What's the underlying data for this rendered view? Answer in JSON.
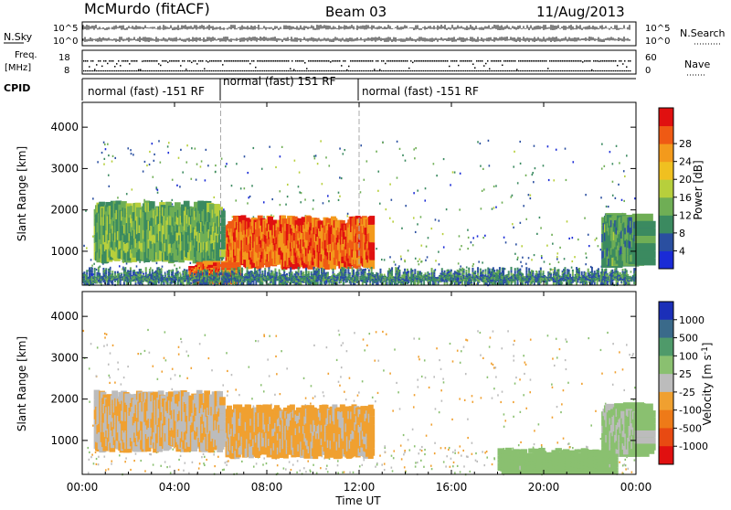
{
  "header": {
    "station": "McMurdo (fitACF)",
    "beam": "Beam 03",
    "date": "11/Aug/2013"
  },
  "ancillary": {
    "nsky_label": "N.Sky",
    "nsky_ticks": [
      "10^5",
      "10^0"
    ],
    "nsearch_label": "N.Search",
    "nsearch_ticks": [
      "10^5",
      "10^0"
    ],
    "freq_label_top": "Freq.",
    "freq_label_bottom": "[MHz]",
    "freq_ticks": [
      "18",
      "8"
    ],
    "nave_label": "Nave",
    "nave_ticks": [
      "60",
      "0"
    ],
    "cpid_label": "CPID",
    "cpid_segments": [
      {
        "text": "normal (fast) -151 RF",
        "start_hour": 0,
        "end_hour": 6
      },
      {
        "text": "normal (fast) 151 RF",
        "start_hour": 6,
        "end_hour": 12
      },
      {
        "text": "normal (fast) -151 RF",
        "start_hour": 12,
        "end_hour": 24
      }
    ]
  },
  "xaxis": {
    "label": "Time UT",
    "tick_labels": [
      "00:00",
      "04:00",
      "08:00",
      "12:00",
      "16:00",
      "20:00",
      "00:00"
    ]
  },
  "power_panel": {
    "ylabel": "Slant Range [km]",
    "ytick_labels": [
      "1000",
      "2000",
      "3000",
      "4000"
    ],
    "colorbar_label": "Power [dB]",
    "colorbar_ticks": [
      "4",
      "8",
      "12",
      "16",
      "20",
      "24",
      "28"
    ]
  },
  "velocity_panel": {
    "ylabel": "Slant Range [km]",
    "ytick_labels": [
      "1000",
      "2000",
      "3000",
      "4000"
    ],
    "colorbar_label": "Velocity [m s",
    "colorbar_label_sup": "-1",
    "colorbar_label_end": "]",
    "colorbar_ticks": [
      "1000",
      "500",
      "100",
      "25",
      "-25",
      "-100",
      "-500",
      "-1000"
    ]
  },
  "colors": {
    "power_scale": [
      "#1a2bd6",
      "#2a4fa0",
      "#3b8a60",
      "#6fae55",
      "#b7cf3c",
      "#f0c020",
      "#f39a1c",
      "#ef5a14",
      "#e01010"
    ],
    "velocity_scale": [
      "#1b2fb8",
      "#3a6a8a",
      "#4f9a6a",
      "#8ac070",
      "#bcbcbc",
      "#f0a030",
      "#ee7a18",
      "#e84a12",
      "#e01010"
    ]
  },
  "chart_data": [
    {
      "type": "heatmap",
      "title": "Beam 03",
      "subtitle": "McMurdo (fitACF) 11/Aug/2013",
      "xlabel": "Time UT",
      "ylabel": "Slant Range [km]",
      "x_range_hours": [
        0,
        24
      ],
      "ylim": [
        180,
        4600
      ],
      "colorbar": {
        "label": "Power [dB]",
        "range": [
          0,
          32
        ],
        "ticks": [
          4,
          8,
          12,
          16,
          20,
          24,
          28
        ]
      },
      "regions": [
        {
          "t_start": 6.2,
          "t_end": 12.5,
          "r_min": 650,
          "r_max": 1750,
          "value": 26
        },
        {
          "t_start": 0.5,
          "t_end": 6.0,
          "r_min": 800,
          "r_max": 2100,
          "value": 12
        },
        {
          "t_start": 4.6,
          "t_end": 6.0,
          "r_min": 300,
          "r_max": 650,
          "value": 26
        },
        {
          "t_start": 22.5,
          "t_end": 24.0,
          "r_min": 700,
          "r_max": 1800,
          "value": 10
        },
        {
          "t_start": 0.0,
          "t_end": 24.0,
          "r_min": 200,
          "r_max": 500,
          "value": 8
        }
      ],
      "grid": false
    },
    {
      "type": "heatmap",
      "title": "Beam 03",
      "subtitle": "McMurdo (fitACF) 11/Aug/2013",
      "xlabel": "Time UT",
      "ylabel": "Slant Range [km]",
      "x_range_hours": [
        0,
        24
      ],
      "ylim": [
        180,
        4600
      ],
      "colorbar": {
        "label": "Velocity [m s-1]",
        "range": [
          -1000,
          1000
        ],
        "ticks": [
          1000,
          500,
          100,
          25,
          -25,
          -100,
          -500,
          -1000
        ]
      },
      "regions": [
        {
          "t_start": 6.2,
          "t_end": 12.5,
          "r_min": 650,
          "r_max": 1750,
          "value": 150
        },
        {
          "t_start": 0.5,
          "t_end": 6.0,
          "r_min": 800,
          "r_max": 2100,
          "value": 100
        },
        {
          "t_start": 22.5,
          "t_end": 24.0,
          "r_min": 700,
          "r_max": 1800,
          "value": -150
        },
        {
          "t_start": 18.0,
          "t_end": 23.0,
          "r_min": 200,
          "r_max": 700,
          "value": -200
        }
      ],
      "grid": false
    }
  ]
}
